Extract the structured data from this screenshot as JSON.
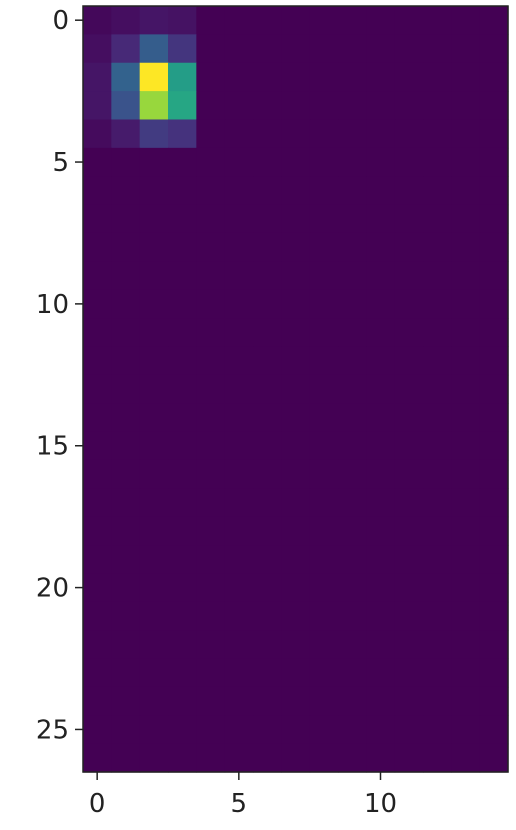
{
  "chart_data": {
    "type": "heatmap",
    "colormap": "viridis",
    "rows": 27,
    "cols": 15,
    "value_range": [
      0,
      1
    ],
    "background_value": 0,
    "cells": [
      {
        "row": 0,
        "col": 0,
        "value": 0.02
      },
      {
        "row": 0,
        "col": 1,
        "value": 0.04
      },
      {
        "row": 0,
        "col": 2,
        "value": 0.06
      },
      {
        "row": 0,
        "col": 3,
        "value": 0.05
      },
      {
        "row": 1,
        "col": 0,
        "value": 0.04
      },
      {
        "row": 1,
        "col": 1,
        "value": 0.12
      },
      {
        "row": 1,
        "col": 2,
        "value": 0.3
      },
      {
        "row": 1,
        "col": 3,
        "value": 0.16
      },
      {
        "row": 2,
        "col": 0,
        "value": 0.06
      },
      {
        "row": 2,
        "col": 1,
        "value": 0.32
      },
      {
        "row": 2,
        "col": 2,
        "value": 1.0
      },
      {
        "row": 2,
        "col": 3,
        "value": 0.56
      },
      {
        "row": 3,
        "col": 0,
        "value": 0.06
      },
      {
        "row": 3,
        "col": 1,
        "value": 0.26
      },
      {
        "row": 3,
        "col": 2,
        "value": 0.85
      },
      {
        "row": 3,
        "col": 3,
        "value": 0.6
      },
      {
        "row": 4,
        "col": 0,
        "value": 0.03
      },
      {
        "row": 4,
        "col": 1,
        "value": 0.08
      },
      {
        "row": 4,
        "col": 2,
        "value": 0.18
      },
      {
        "row": 4,
        "col": 3,
        "value": 0.15
      }
    ],
    "x_ticks": [
      0,
      5,
      10
    ],
    "y_ticks": [
      0,
      5,
      10,
      15,
      20,
      25
    ],
    "x_tick_labels": [
      "0",
      "5",
      "10"
    ],
    "y_tick_labels": [
      "0",
      "5",
      "10",
      "15",
      "20",
      "25"
    ],
    "title": "",
    "xlabel": "",
    "ylabel": "",
    "grid": false,
    "colorbar": false
  }
}
